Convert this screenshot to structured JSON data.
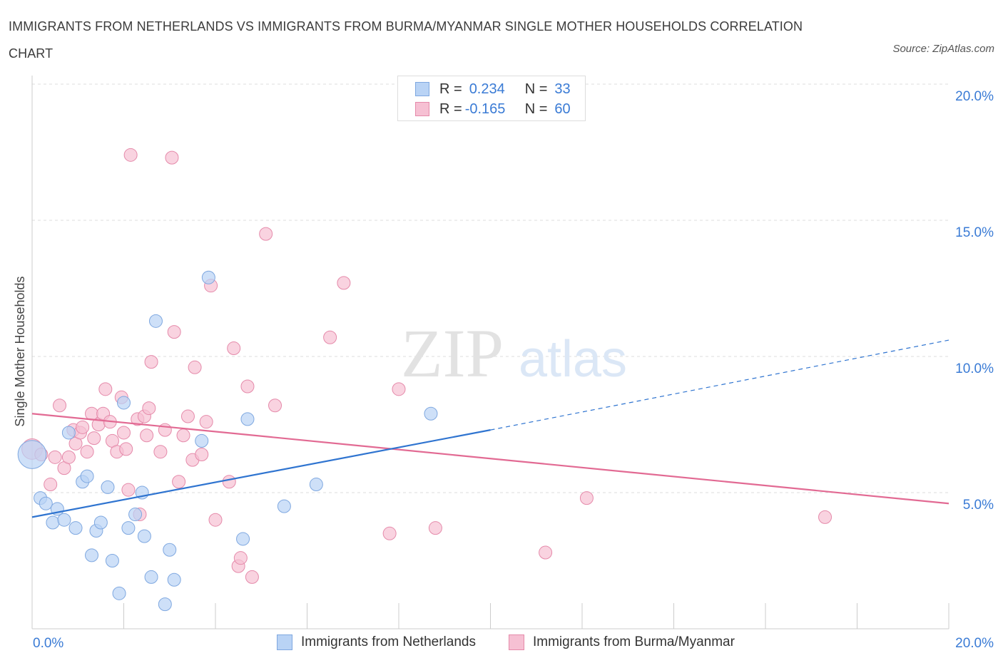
{
  "title": "IMMIGRANTS FROM NETHERLANDS VS IMMIGRANTS FROM BURMA/MYANMAR SINGLE MOTHER HOUSEHOLDS CORRELATION CHART",
  "source": "Source: ZipAtlas.com",
  "watermark": {
    "zip": "ZIP",
    "atlas": "atlas"
  },
  "legend_top": [
    {
      "r_label": "R = ",
      "r_value": "0.234",
      "n_label": "N = ",
      "n_value": "33"
    },
    {
      "r_label": "R = ",
      "r_value": "-0.165",
      "n_label": "N = ",
      "n_value": "60"
    }
  ],
  "legend_bottom": [
    {
      "label": "Immigrants from Netherlands"
    },
    {
      "label": "Immigrants from Burma/Myanmar"
    }
  ],
  "colors": {
    "blue_fill": "#b9d3f5",
    "blue_stroke": "#7fa8e0",
    "blue_line": "#2f74d0",
    "pink_fill": "#f6c0d3",
    "pink_stroke": "#e58aaa",
    "pink_line": "#e26a93",
    "tick_label": "#3a7bd5",
    "grid": "#dddddd"
  },
  "chart_data": {
    "type": "scatter",
    "title": "IMMIGRANTS FROM NETHERLANDS VS IMMIGRANTS FROM BURMA/MYANMAR SINGLE MOTHER HOUSEHOLDS CORRELATION CHART",
    "xlabel": "",
    "ylabel": "Single Mother Households",
    "xlim": [
      0,
      20
    ],
    "ylim": [
      0,
      20
    ],
    "x_tick_labels": [
      "0.0%",
      "20.0%"
    ],
    "y_ticks": [
      {
        "value": 5,
        "label": "5.0%"
      },
      {
        "value": 10,
        "label": "10.0%"
      },
      {
        "value": 15,
        "label": "15.0%"
      },
      {
        "value": 20,
        "label": "20.0%"
      }
    ],
    "grid": true,
    "legend_placement": "bottom",
    "series": [
      {
        "name": "Immigrants from Netherlands",
        "R": 0.234,
        "N": 33,
        "trend": {
          "x0": 0,
          "y0": 4.1,
          "x1": 10.0,
          "y1": 7.3,
          "x_dash_end": 20,
          "y_dash_end": 10.6
        },
        "points": [
          [
            0.0,
            6.4,
            2.2
          ],
          [
            0.18,
            4.8,
            1
          ],
          [
            0.3,
            4.6,
            1
          ],
          [
            0.45,
            3.9,
            1
          ],
          [
            0.55,
            4.4,
            1
          ],
          [
            0.7,
            4.0,
            1
          ],
          [
            0.8,
            7.2,
            1
          ],
          [
            0.95,
            3.7,
            1
          ],
          [
            1.1,
            5.4,
            1
          ],
          [
            1.2,
            5.6,
            1
          ],
          [
            1.3,
            2.7,
            1
          ],
          [
            1.4,
            3.6,
            1
          ],
          [
            1.5,
            3.9,
            1
          ],
          [
            1.65,
            5.2,
            1
          ],
          [
            1.75,
            2.5,
            1
          ],
          [
            1.9,
            1.3,
            1
          ],
          [
            2.0,
            8.3,
            1
          ],
          [
            2.1,
            3.7,
            1
          ],
          [
            2.25,
            4.2,
            1
          ],
          [
            2.4,
            5.0,
            1
          ],
          [
            2.45,
            3.4,
            1
          ],
          [
            2.6,
            1.9,
            1
          ],
          [
            2.7,
            11.3,
            1
          ],
          [
            2.9,
            0.9,
            1
          ],
          [
            3.0,
            2.9,
            1
          ],
          [
            3.1,
            1.8,
            1
          ],
          [
            3.7,
            6.9,
            1
          ],
          [
            3.85,
            12.9,
            1
          ],
          [
            4.6,
            3.3,
            1
          ],
          [
            4.7,
            7.7,
            1
          ],
          [
            5.5,
            4.5,
            1
          ],
          [
            6.2,
            5.3,
            1
          ],
          [
            8.7,
            7.9,
            1
          ]
        ]
      },
      {
        "name": "Immigrants from Burma/Myanmar",
        "R": -0.165,
        "N": 60,
        "trend": {
          "x0": 0,
          "y0": 7.9,
          "x1": 20,
          "y1": 4.6
        },
        "points": [
          [
            0.0,
            6.6,
            1.6
          ],
          [
            0.2,
            6.4,
            1
          ],
          [
            0.4,
            5.3,
            1
          ],
          [
            0.5,
            6.3,
            1
          ],
          [
            0.6,
            8.2,
            1
          ],
          [
            0.7,
            5.9,
            1
          ],
          [
            0.8,
            6.3,
            1
          ],
          [
            0.9,
            7.3,
            1
          ],
          [
            0.95,
            6.8,
            1
          ],
          [
            1.05,
            7.2,
            1
          ],
          [
            1.1,
            7.4,
            1
          ],
          [
            1.2,
            6.5,
            1
          ],
          [
            1.3,
            7.9,
            1
          ],
          [
            1.35,
            7.0,
            1
          ],
          [
            1.45,
            7.5,
            1
          ],
          [
            1.55,
            7.9,
            1
          ],
          [
            1.6,
            8.8,
            1
          ],
          [
            1.7,
            7.6,
            1
          ],
          [
            1.75,
            6.9,
            1
          ],
          [
            1.85,
            6.5,
            1
          ],
          [
            1.95,
            8.5,
            1
          ],
          [
            2.0,
            7.2,
            1
          ],
          [
            2.05,
            6.6,
            1
          ],
          [
            2.1,
            5.1,
            1
          ],
          [
            2.15,
            17.4,
            1
          ],
          [
            2.3,
            7.7,
            1
          ],
          [
            2.35,
            4.2,
            1
          ],
          [
            2.45,
            7.8,
            1
          ],
          [
            2.5,
            7.1,
            1
          ],
          [
            2.55,
            8.1,
            1
          ],
          [
            2.6,
            9.8,
            1
          ],
          [
            2.8,
            6.5,
            1
          ],
          [
            2.9,
            7.3,
            1
          ],
          [
            3.05,
            17.3,
            1
          ],
          [
            3.1,
            10.9,
            1
          ],
          [
            3.2,
            5.4,
            1
          ],
          [
            3.3,
            7.1,
            1
          ],
          [
            3.4,
            7.8,
            1
          ],
          [
            3.5,
            6.2,
            1
          ],
          [
            3.55,
            9.6,
            1
          ],
          [
            3.7,
            6.4,
            1
          ],
          [
            3.8,
            7.6,
            1
          ],
          [
            3.9,
            12.6,
            1
          ],
          [
            4.0,
            4.0,
            1
          ],
          [
            4.3,
            5.4,
            1
          ],
          [
            4.4,
            10.3,
            1
          ],
          [
            4.5,
            2.3,
            1
          ],
          [
            4.55,
            2.6,
            1
          ],
          [
            4.7,
            8.9,
            1
          ],
          [
            4.8,
            1.9,
            1
          ],
          [
            5.1,
            14.5,
            1
          ],
          [
            5.3,
            8.2,
            1
          ],
          [
            6.5,
            10.7,
            1
          ],
          [
            6.8,
            12.7,
            1
          ],
          [
            7.8,
            3.5,
            1
          ],
          [
            8.0,
            8.8,
            1
          ],
          [
            8.8,
            3.7,
            1
          ],
          [
            11.2,
            2.8,
            1
          ],
          [
            12.1,
            4.8,
            1
          ],
          [
            17.3,
            4.1,
            1
          ]
        ]
      }
    ]
  }
}
